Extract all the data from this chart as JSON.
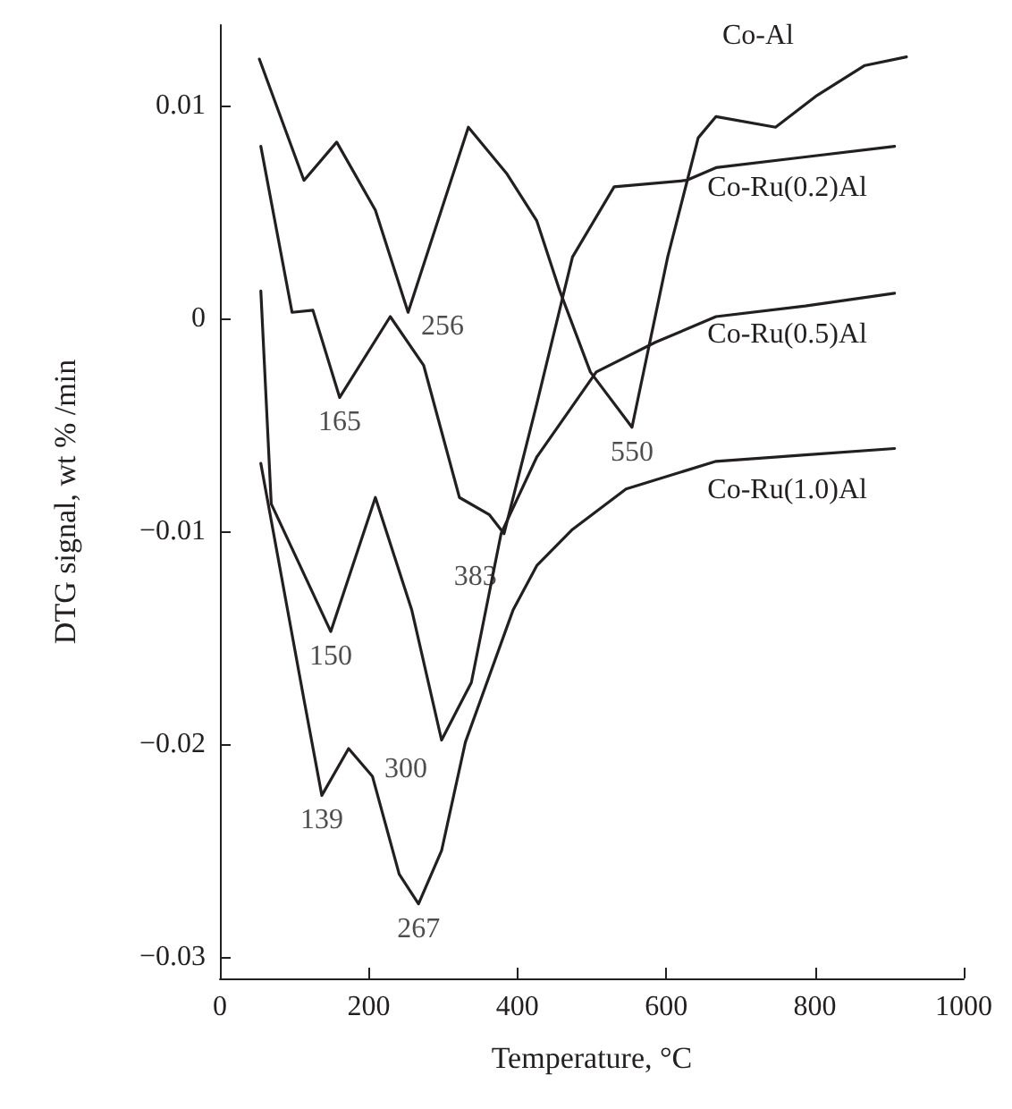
{
  "chart_data": {
    "type": "line",
    "xlabel": "Temperature, °C",
    "ylabel": "DTG signal, wt % /min",
    "xlim": [
      0,
      1000
    ],
    "xticks": [
      0,
      200,
      400,
      600,
      800,
      1000
    ],
    "ylim": [
      -0.031,
      0.0138
    ],
    "yticks": [
      {
        "value": -0.03,
        "label": "−0.03"
      },
      {
        "value": -0.02,
        "label": "−0.02"
      },
      {
        "value": -0.01,
        "label": "−0.01"
      },
      0,
      0.01
    ],
    "grid": false,
    "legend": false,
    "marker": "none",
    "line_style": "solid",
    "series": [
      {
        "name": "Co-Al",
        "color": "#231f20",
        "x": [
          53,
          113,
          157,
          209,
          253,
          334,
          386,
          426,
          457,
          498,
          554,
          602,
          643,
          667,
          747,
          803,
          867,
          923
        ],
        "values": [
          0.0122,
          0.0065,
          0.0083,
          0.0051,
          0.0003,
          0.009,
          0.0068,
          0.0046,
          0.0013,
          -0.0025,
          -0.0051,
          0.0029,
          0.0085,
          0.0095,
          0.009,
          0.0105,
          0.0119,
          0.0123
        ]
      },
      {
        "name": "Co-Ru(0.2)Al",
        "color": "#231f20",
        "x": [
          55,
          97,
          125,
          161,
          229,
          274,
          322,
          362,
          382,
          426,
          474,
          530,
          627,
          667,
          787,
          907
        ],
        "values": [
          0.0081,
          0.0003,
          0.0004,
          -0.0037,
          0.0001,
          -0.0022,
          -0.0084,
          -0.0092,
          -0.0101,
          -0.004,
          0.0029,
          0.0062,
          0.0065,
          0.0071,
          0.0076,
          0.0081
        ]
      },
      {
        "name": "Co-Ru(0.5)Al",
        "color": "#231f20",
        "x": [
          55,
          69,
          149,
          209,
          258,
          298,
          338,
          378,
          426,
          506,
          586,
          667,
          787,
          907
        ],
        "values": [
          0.0013,
          -0.0087,
          -0.0147,
          -0.0084,
          -0.0137,
          -0.0198,
          -0.0171,
          -0.0101,
          -0.0065,
          -0.0025,
          -0.0011,
          0.0001,
          0.0006,
          0.0012
        ]
      },
      {
        "name": "Co-Ru(1.0)Al",
        "color": "#231f20",
        "x": [
          55,
          113,
          137,
          173,
          205,
          241,
          267,
          298,
          330,
          394,
          426,
          474,
          546,
          667,
          787,
          907
        ],
        "values": [
          -0.0068,
          -0.0179,
          -0.0224,
          -0.0202,
          -0.0215,
          -0.0261,
          -0.0275,
          -0.025,
          -0.0199,
          -0.0137,
          -0.0116,
          -0.0099,
          -0.008,
          -0.0067,
          -0.0064,
          -0.0061
        ]
      }
    ],
    "annotations": [
      {
        "text": "256",
        "x": 256,
        "y": 0.0003
      },
      {
        "text": "165",
        "x": 161,
        "y": -0.0037
      },
      {
        "text": "383",
        "x": 382,
        "y": -0.0101
      },
      {
        "text": "550",
        "x": 554,
        "y": -0.0051
      },
      {
        "text": "150",
        "x": 149,
        "y": -0.0147
      },
      {
        "text": "300",
        "x": 298,
        "y": -0.0198
      },
      {
        "text": "139",
        "x": 137,
        "y": -0.0224
      },
      {
        "text": "267",
        "x": 267,
        "y": -0.0275
      }
    ]
  }
}
